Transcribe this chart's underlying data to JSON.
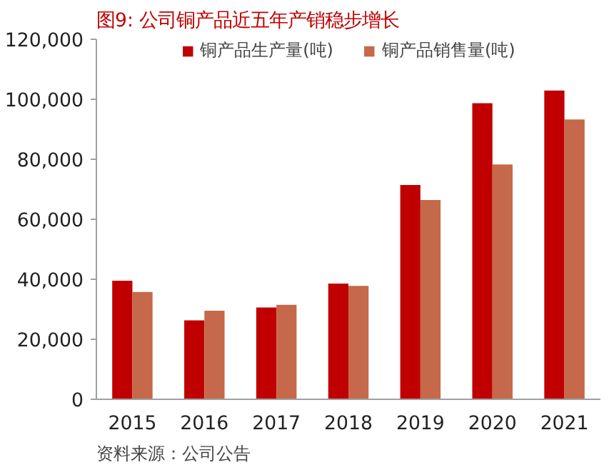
{
  "chart_data": {
    "type": "bar",
    "title": "图9:   公司铜产品近五年产销稳步增长",
    "categories": [
      "2015",
      "2016",
      "2017",
      "2018",
      "2019",
      "2020",
      "2021"
    ],
    "series": [
      {
        "name": "铜产品生产量(吨)",
        "color": "#c00000",
        "values": [
          39500,
          26300,
          30600,
          38600,
          71400,
          98700,
          102900
        ]
      },
      {
        "name": "铜产品销售量(吨)",
        "color": "#c5694a",
        "values": [
          35800,
          29500,
          31500,
          37800,
          66400,
          78300,
          93300
        ]
      }
    ],
    "ylim": [
      0,
      120000
    ],
    "yticks": [
      {
        "value": 0,
        "label": "0"
      },
      {
        "value": 20000,
        "label": "20,000"
      },
      {
        "value": 40000,
        "label": "40,000"
      },
      {
        "value": 60000,
        "label": "60,000"
      },
      {
        "value": 80000,
        "label": "80,000"
      },
      {
        "value": 100000,
        "label": "100,000"
      },
      {
        "value": 120000,
        "label": "120,000"
      }
    ],
    "grid": false,
    "legend": "top",
    "annotations": [
      "资料来源：公司公告"
    ]
  }
}
